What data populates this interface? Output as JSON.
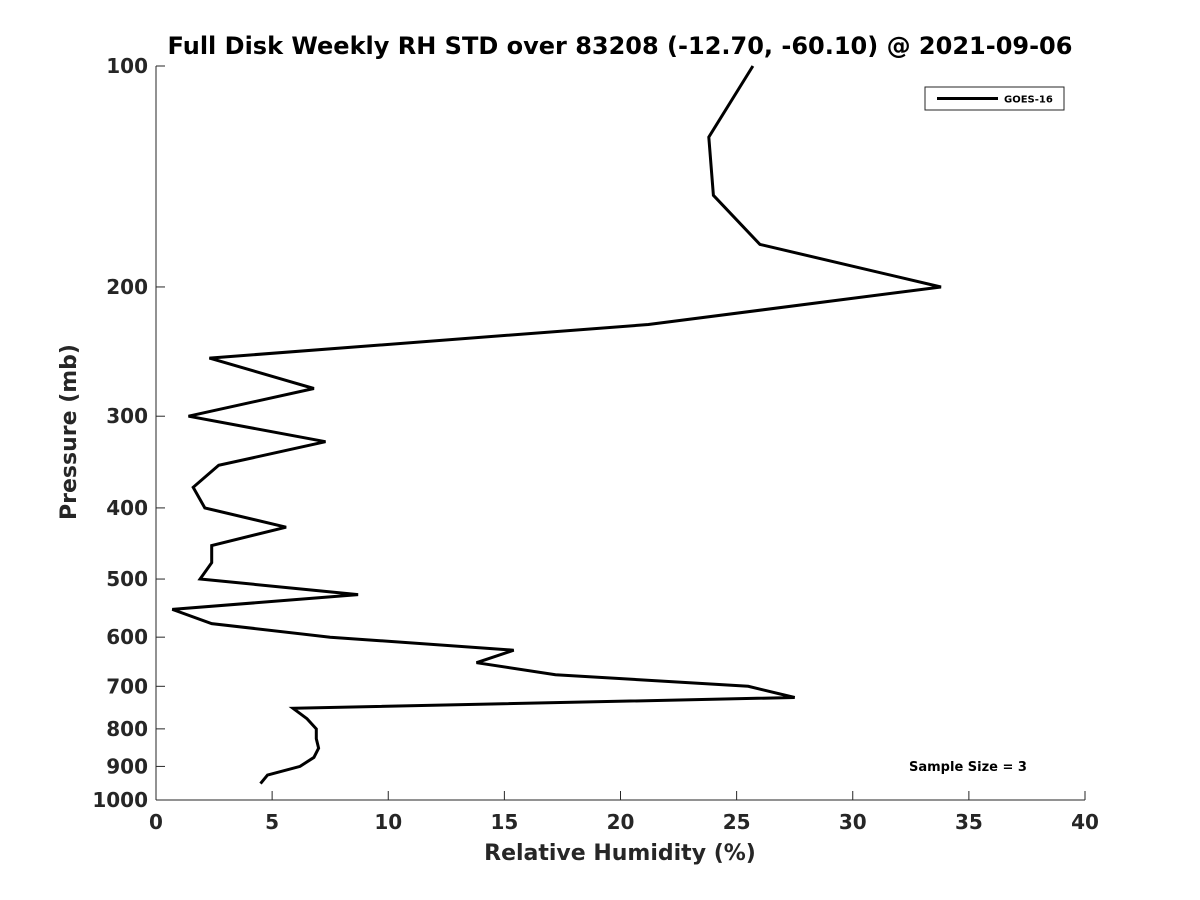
{
  "chart_data": {
    "type": "line",
    "title": "Full Disk Weekly RH STD over 83208 (-12.70, -60.10) @ 2021-09-06",
    "xlabel": "Relative Humidity (%)",
    "ylabel": "Pressure (mb)",
    "xlim": [
      0,
      40
    ],
    "ylim": [
      100,
      1000
    ],
    "y_scale": "log",
    "y_reversed": true,
    "x_ticks": [
      "0",
      "5",
      "10",
      "15",
      "20",
      "25",
      "30",
      "35",
      "40"
    ],
    "y_ticks": [
      "100",
      "200",
      "300",
      "400",
      "500",
      "600",
      "700",
      "800",
      "900",
      "1000"
    ],
    "grid": false,
    "legend_position": "top-right",
    "annotation": "Sample Size = 3",
    "series": [
      {
        "name": "GOES-16",
        "color": "#000000",
        "pressure": [
          100,
          125,
          150,
          175,
          200,
          225,
          250,
          275,
          300,
          325,
          350,
          375,
          400,
          425,
          450,
          475,
          500,
          525,
          550,
          575,
          600,
          625,
          650,
          675,
          700,
          725,
          750,
          775,
          800,
          825,
          850,
          875,
          900,
          925,
          950
        ],
        "rh": [
          25.7,
          23.8,
          24.0,
          26.0,
          33.8,
          21.2,
          2.3,
          6.8,
          1.4,
          7.3,
          2.7,
          1.6,
          2.1,
          5.6,
          2.4,
          2.4,
          1.9,
          8.7,
          0.7,
          2.4,
          7.5,
          15.4,
          13.8,
          17.2,
          25.5,
          27.5,
          5.9,
          6.5,
          6.9,
          6.9,
          7.0,
          6.8,
          6.2,
          4.8,
          4.5
        ]
      }
    ]
  }
}
